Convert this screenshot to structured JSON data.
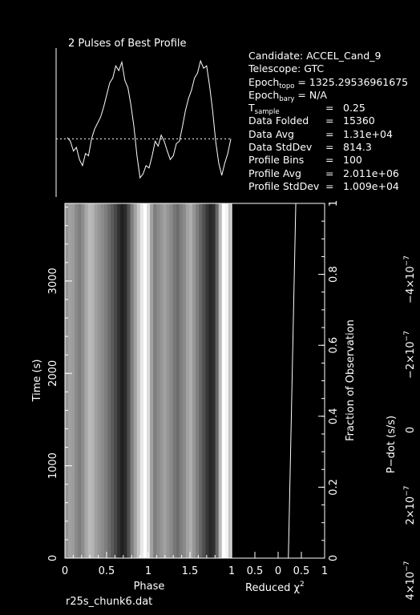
{
  "profile": {
    "title": "2 Pulses of Best Profile",
    "values": [
      0.33,
      0.3,
      0.22,
      0.25,
      0.15,
      0.1,
      0.2,
      0.18,
      0.32,
      0.4,
      0.45,
      0.5,
      0.58,
      0.68,
      0.78,
      0.82,
      0.92,
      0.88,
      0.95,
      0.8,
      0.74,
      0.6,
      0.42,
      0.18,
      0.0,
      0.03,
      0.1,
      0.08,
      0.18,
      0.3,
      0.26,
      0.35,
      0.3,
      0.22,
      0.15,
      0.18,
      0.28,
      0.3,
      0.42,
      0.55,
      0.65,
      0.72,
      0.82,
      0.86,
      0.96,
      0.9,
      0.92,
      0.75,
      0.55,
      0.3,
      0.12,
      0.02,
      0.12,
      0.2,
      0.32
    ],
    "avg_level": 0.32
  },
  "info": {
    "candidate": "Candidate:  ACCEL_Cand_9",
    "telescope": "Telescope:  GTC",
    "epoch_topo": "= 1325.29536961675",
    "epoch_bary": "= N/A",
    "rows": [
      {
        "key": "sample",
        "eq": "=",
        "val": "0.25"
      },
      {
        "key": "Data Folded",
        "eq": "=",
        "val": "15360"
      },
      {
        "key": "Data Avg",
        "eq": "=",
        "val": "1.31e+04"
      },
      {
        "key": "Data StdDev",
        "eq": "=",
        "val": "814.3"
      },
      {
        "key": "Profile Bins",
        "eq": "=",
        "val": "100"
      },
      {
        "key": "Profile Avg",
        "eq": "=",
        "val": "2.011e+06"
      },
      {
        "key": "Profile StdDev",
        "eq": "=",
        "val": "1.009e+04"
      }
    ],
    "epoch_label": "Epoch",
    "topo_sub": "topo",
    "bary_sub": "bary",
    "t_label": "T"
  },
  "chart_data": [
    {
      "type": "heatmap",
      "xlabel": "Phase",
      "ylabel": "Time (s)",
      "x_ticks": [
        "0",
        "0.5",
        "1",
        "1.5"
      ],
      "x_tick_values": [
        0,
        0.5,
        1,
        1.5
      ],
      "y_ticks": [
        "0",
        "1000",
        "2000",
        "3000"
      ],
      "y_tick_values": [
        0,
        1000,
        2000,
        3000
      ],
      "xlim": [
        0,
        2
      ],
      "ylim": [
        0,
        3840
      ],
      "right_axis": {
        "label": "Fraction of Observation",
        "ticks": [
          "0",
          "0.2",
          "0.4",
          "0.6",
          "0.8",
          "1"
        ],
        "tick_values": [
          0,
          0.2,
          0.4,
          0.6,
          0.8,
          1
        ]
      },
      "phase_profile": [
        0.55,
        0.6,
        0.58,
        0.5,
        0.45,
        0.52,
        0.62,
        0.7,
        0.68,
        0.6,
        0.55,
        0.5,
        0.45,
        0.38,
        0.3,
        0.22,
        0.12,
        0.05,
        0.1,
        0.25,
        0.45,
        0.6,
        0.75,
        0.9,
        1.0,
        0.85,
        0.6,
        0.45,
        0.5,
        0.55,
        0.6,
        0.55,
        0.5,
        0.42,
        0.38,
        0.45,
        0.5,
        0.6,
        0.65,
        0.55,
        0.45,
        0.35,
        0.25,
        0.15,
        0.08,
        0.12,
        0.35,
        0.7,
        1.0,
        0.95,
        0.75
      ]
    },
    {
      "type": "line",
      "xlabel": "Reduced",
      "x_ticks": [
        "1",
        "0.5",
        "0",
        "0.5",
        "1"
      ],
      "x_tick_values": [
        -1,
        -0.5,
        0,
        0.5,
        1
      ],
      "xlim": [
        -1,
        1
      ],
      "ylim": [
        0,
        1
      ],
      "series": [
        {
          "x": [
            0.22,
            0.38
          ],
          "y": [
            0,
            1
          ]
        }
      ]
    },
    {
      "type": "line",
      "ylabel": "P−dot (s/s)",
      "y_ticks": [
        "4×10",
        "2×10",
        "0",
        "−2×10",
        "−4×10"
      ],
      "y_tick_exponent": "−7",
      "y_tick_values": [
        4e-07,
        2e-07,
        0,
        -2e-07,
        -4e-07
      ]
    }
  ],
  "footer": {
    "filename": "r25s_chunk6.dat"
  }
}
